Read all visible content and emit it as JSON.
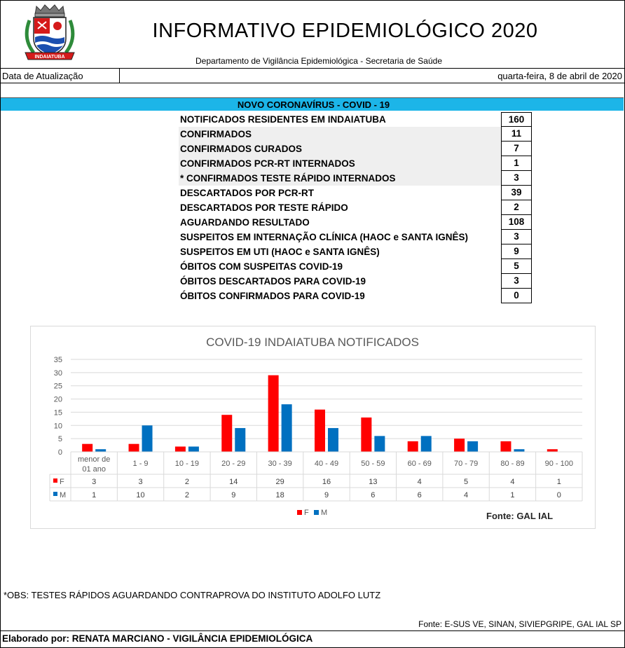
{
  "header": {
    "title": "INFORMATIVO EPIDEMIOLÓGICO 2020",
    "subtitle": "Departamento de Vigilância Epidemiológica - Secretaria de Saúde",
    "crest_text": "INDAIATUBA"
  },
  "update": {
    "label": "Data de Atualização",
    "date": "quarta-feira, 8 de abril de 2020"
  },
  "section": {
    "title": "NOVO CORONAVÍRUS - COVID - 19"
  },
  "stats": [
    {
      "label": "NOTIFICADOS RESIDENTES EM INDAIATUBA",
      "value": "160"
    },
    {
      "label": "CONFIRMADOS",
      "value": "11"
    },
    {
      "label": "CONFIRMADOS CURADOS",
      "value": "7"
    },
    {
      "label": "CONFIRMADOS PCR-RT INTERNADOS",
      "value": "1"
    },
    {
      "label": "* CONFIRMADOS TESTE RÁPIDO INTERNADOS",
      "value": "3"
    },
    {
      "label": "DESCARTADOS POR PCR-RT",
      "value": "39"
    },
    {
      "label": "DESCARTADOS POR TESTE RÁPIDO",
      "value": "2"
    },
    {
      "label": "AGUARDANDO RESULTADO",
      "value": "108"
    },
    {
      "label": "SUSPEITOS EM INTERNAÇÃO CLÍNICA (HAOC e SANTA IGNÊS)",
      "value": "3"
    },
    {
      "label": "SUSPEITOS EM UTI (HAOC e SANTA IGNÊS)",
      "value": "9"
    },
    {
      "label": "ÓBITOS COM SUSPEITAS COVID-19",
      "value": "5"
    },
    {
      "label": "ÓBITOS DESCARTADOS PARA COVID-19",
      "value": "3"
    },
    {
      "label": "ÓBITOS CONFIRMADOS PARA COVID-19",
      "value": "0"
    }
  ],
  "chart_data": {
    "type": "bar",
    "title": "COVID-19 INDAIATUBA NOTIFICADOS",
    "categories": [
      "menor de 01 ano",
      "1 - 9",
      "10 - 19",
      "20 - 29",
      "30 - 39",
      "40 - 49",
      "50 - 59",
      "60 - 69",
      "70 - 79",
      "80 - 89",
      "90 - 100"
    ],
    "series": [
      {
        "name": "F",
        "color": "#ff0000",
        "values": [
          3,
          3,
          2,
          14,
          29,
          16,
          13,
          4,
          5,
          4,
          1
        ]
      },
      {
        "name": "M",
        "color": "#0070c0",
        "values": [
          1,
          10,
          2,
          9,
          18,
          9,
          6,
          6,
          4,
          1,
          0
        ]
      }
    ],
    "ylim": [
      0,
      35
    ],
    "yticks": [
      0,
      5,
      10,
      15,
      20,
      25,
      30,
      35
    ],
    "grid": true,
    "legend": "bottom",
    "data_table": true,
    "source_note": "Fonte: GAL IAL"
  },
  "footer": {
    "obs": "*OBS: TESTES RÁPIDOS AGUARDANDO CONTRAPROVA DO INSTITUTO ADOLFO LUTZ",
    "source": "Fonte: E-SUS VE, SINAN, SIVIEPGRIPE, GAL IAL SP",
    "author": "Elaborado por: RENATA MARCIANO - VIGILÂNCIA EPIDEMIOLÓGICA"
  }
}
